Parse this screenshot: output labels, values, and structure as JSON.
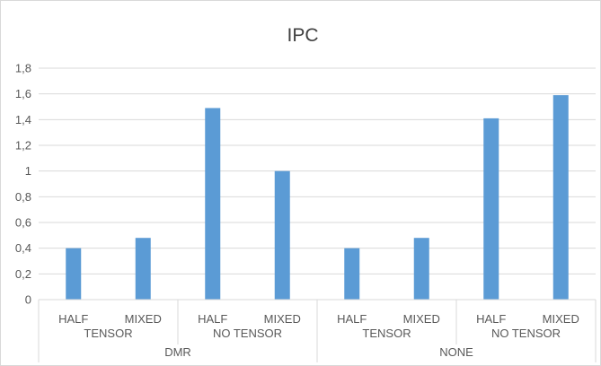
{
  "chart_data": {
    "type": "bar",
    "title": "IPC",
    "xlabel": "",
    "ylabel": "",
    "ylim": [
      0,
      1.8
    ],
    "ytick_labels": [
      "0",
      "0,2",
      "0,4",
      "0,6",
      "0,8",
      "1",
      "1,2",
      "1,4",
      "1,6",
      "1,8"
    ],
    "grid": true,
    "legend": "none",
    "categories": [
      {
        "sub": "HALF",
        "type": "TENSOR",
        "group": "DMR"
      },
      {
        "sub": "MIXED",
        "type": "TENSOR",
        "group": "DMR"
      },
      {
        "sub": "HALF",
        "type": "NO TENSOR",
        "group": "DMR"
      },
      {
        "sub": "MIXED",
        "type": "NO TENSOR",
        "group": "DMR"
      },
      {
        "sub": "HALF",
        "type": "TENSOR",
        "group": "NONE"
      },
      {
        "sub": "MIXED",
        "type": "TENSOR",
        "group": "NONE"
      },
      {
        "sub": "HALF",
        "type": "NO TENSOR",
        "group": "NONE"
      },
      {
        "sub": "MIXED",
        "type": "NO TENSOR",
        "group": "NONE"
      }
    ],
    "values": [
      0.4,
      0.48,
      1.49,
      1.0,
      0.4,
      0.48,
      1.41,
      1.59
    ],
    "type_labels": [
      "TENSOR",
      "NO TENSOR",
      "TENSOR",
      "NO TENSOR"
    ],
    "group_labels": [
      "DMR",
      "NONE"
    ],
    "colors": {
      "bar": "#5b9bd5",
      "grid": "#d9d9d9",
      "text": "#595959",
      "title": "#404040"
    }
  }
}
